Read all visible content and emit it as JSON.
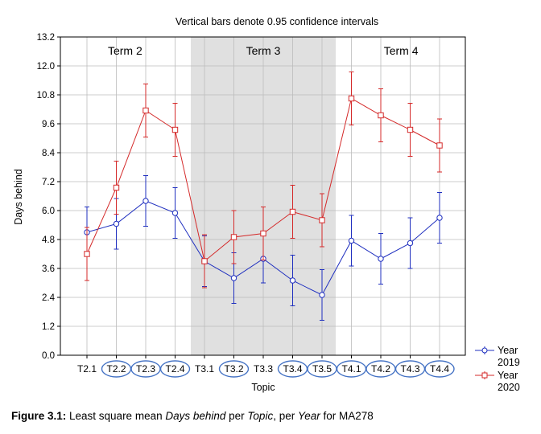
{
  "chart_data": {
    "type": "line",
    "title": "Vertical bars denote 0.95 confidence intervals",
    "xlabel": "Topic",
    "ylabel": "Days behind",
    "ylim": [
      0.0,
      13.2
    ],
    "yticks": [
      "0.0",
      "1.2",
      "2.4",
      "3.6",
      "4.8",
      "6.0",
      "7.2",
      "8.4",
      "9.6",
      "10.8",
      "12.0",
      "13.2"
    ],
    "grid": true,
    "legend_position": "right",
    "categories": [
      "T2.1",
      "T2.2",
      "T2.3",
      "T2.4",
      "T3.1",
      "T3.2",
      "T3.3",
      "T3.4",
      "T3.5",
      "T4.1",
      "T4.2",
      "T4.3",
      "T4.4"
    ],
    "circled_categories": [
      "T2.2",
      "T2.3",
      "T2.4",
      "T3.2",
      "T3.4",
      "T3.5",
      "T4.1",
      "T4.2",
      "T4.3",
      "T4.4"
    ],
    "regions": [
      {
        "label": "Term 2",
        "start": "T2.1",
        "end": "T2.4",
        "shaded": false
      },
      {
        "label": "Term 3",
        "start": "T3.1",
        "end": "T3.5",
        "shaded": true
      },
      {
        "label": "Term 4",
        "start": "T4.1",
        "end": "T4.4",
        "shaded": false
      }
    ],
    "series": [
      {
        "name": "Year 2019",
        "legend_lines": [
          "Year",
          "2019"
        ],
        "color": "#1f2fbf",
        "marker": "circle",
        "values": [
          5.1,
          5.45,
          6.4,
          5.9,
          3.9,
          3.2,
          4.0,
          3.1,
          2.5,
          4.75,
          4.0,
          4.65,
          5.7
        ],
        "lower": [
          4.1,
          4.4,
          5.35,
          4.85,
          2.85,
          2.15,
          3.0,
          2.05,
          1.45,
          3.7,
          2.95,
          3.6,
          4.65
        ],
        "upper": [
          6.15,
          6.5,
          7.45,
          6.95,
          4.95,
          4.25,
          5.05,
          4.15,
          3.55,
          5.8,
          5.05,
          5.7,
          6.75
        ]
      },
      {
        "name": "Year 2020",
        "legend_lines": [
          "Year",
          "2020"
        ],
        "color": "#d42a2a",
        "marker": "square",
        "values": [
          4.2,
          6.95,
          10.15,
          9.35,
          3.9,
          4.9,
          5.05,
          5.95,
          5.6,
          10.65,
          9.95,
          9.35,
          8.7
        ],
        "lower": [
          3.1,
          5.85,
          9.05,
          8.25,
          2.8,
          3.8,
          3.95,
          4.85,
          4.5,
          9.55,
          8.85,
          8.25,
          7.6
        ],
        "upper": [
          5.3,
          8.05,
          11.25,
          10.45,
          5.0,
          6.0,
          6.15,
          7.05,
          6.7,
          11.75,
          11.05,
          10.45,
          9.8
        ]
      }
    ]
  },
  "caption": {
    "label": "Figure 3.1:",
    "part1": " Least square mean ",
    "term1": "Days behind",
    "part2": " per ",
    "term2": "Topic",
    "part3": ", per ",
    "term3": "Year",
    "part4": " for MA278"
  }
}
